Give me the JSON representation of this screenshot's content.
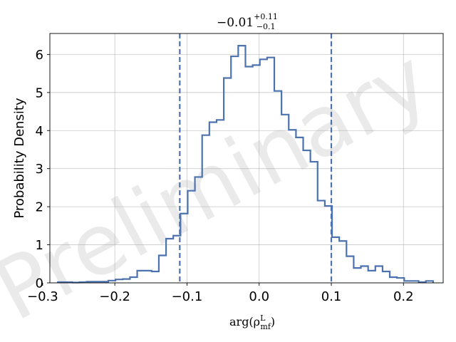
{
  "chart_data": {
    "type": "histogram",
    "title": {
      "main": "−0.01",
      "sup": "+0.11",
      "sub": "−0.1"
    },
    "xlabel": {
      "prefix": "arg(ρ",
      "sup": "L",
      "sub": "mf",
      "suffix": ")"
    },
    "ylabel": "Probability Density",
    "watermark": "Preliminary",
    "xlim": [
      -0.29,
      0.255
    ],
    "ylim": [
      0,
      6.55
    ],
    "xticks": [
      {
        "value": -0.3,
        "label": "−0.3"
      },
      {
        "value": -0.2,
        "label": "−0.2"
      },
      {
        "value": -0.1,
        "label": "−0.1"
      },
      {
        "value": 0.0,
        "label": "0.0"
      },
      {
        "value": 0.1,
        "label": "0.1"
      },
      {
        "value": 0.2,
        "label": "0.2"
      }
    ],
    "yticks": [
      {
        "value": 0,
        "label": "0"
      },
      {
        "value": 1,
        "label": "1"
      },
      {
        "value": 2,
        "label": "2"
      },
      {
        "value": 3,
        "label": "3"
      },
      {
        "value": 4,
        "label": "4"
      },
      {
        "value": 5,
        "label": "5"
      },
      {
        "value": 6,
        "label": "6"
      }
    ],
    "grid": true,
    "bin_edges": [
      -0.279,
      -0.269,
      -0.259,
      -0.249,
      -0.239,
      -0.229,
      -0.219,
      -0.209,
      -0.199,
      -0.189,
      -0.179,
      -0.169,
      -0.159,
      -0.149,
      -0.139,
      -0.129,
      -0.119,
      -0.109,
      -0.099,
      -0.089,
      -0.079,
      -0.069,
      -0.059,
      -0.049,
      -0.039,
      -0.029,
      -0.019,
      -0.009,
      0.001,
      0.011,
      0.021,
      0.031,
      0.041,
      0.051,
      0.061,
      0.071,
      0.081,
      0.091,
      0.101,
      0.111,
      0.121,
      0.131,
      0.141,
      0.151,
      0.161,
      0.171,
      0.181,
      0.191,
      0.201,
      0.211,
      0.221,
      0.231,
      0.241
    ],
    "density": [
      0.02,
      0.02,
      0.01,
      0.02,
      0.03,
      0.03,
      0.03,
      0.06,
      0.09,
      0.1,
      0.15,
      0.32,
      0.32,
      0.3,
      0.72,
      1.16,
      1.24,
      1.82,
      2.42,
      2.78,
      3.88,
      4.22,
      4.28,
      5.38,
      5.95,
      6.23,
      5.68,
      5.72,
      5.87,
      5.92,
      5.04,
      4.42,
      4.02,
      3.82,
      3.48,
      3.18,
      2.16,
      2.02,
      1.2,
      1.1,
      0.7,
      0.39,
      0.44,
      0.32,
      0.44,
      0.3,
      0.15,
      0.13,
      0.05,
      0.05,
      0.02,
      0.05
    ],
    "vlines": [
      -0.11,
      0.1
    ],
    "colors": {
      "line": "#4c72b0",
      "grid": "#b0b0b0",
      "axis": "#000000",
      "watermark": "#bfbfbf"
    }
  }
}
